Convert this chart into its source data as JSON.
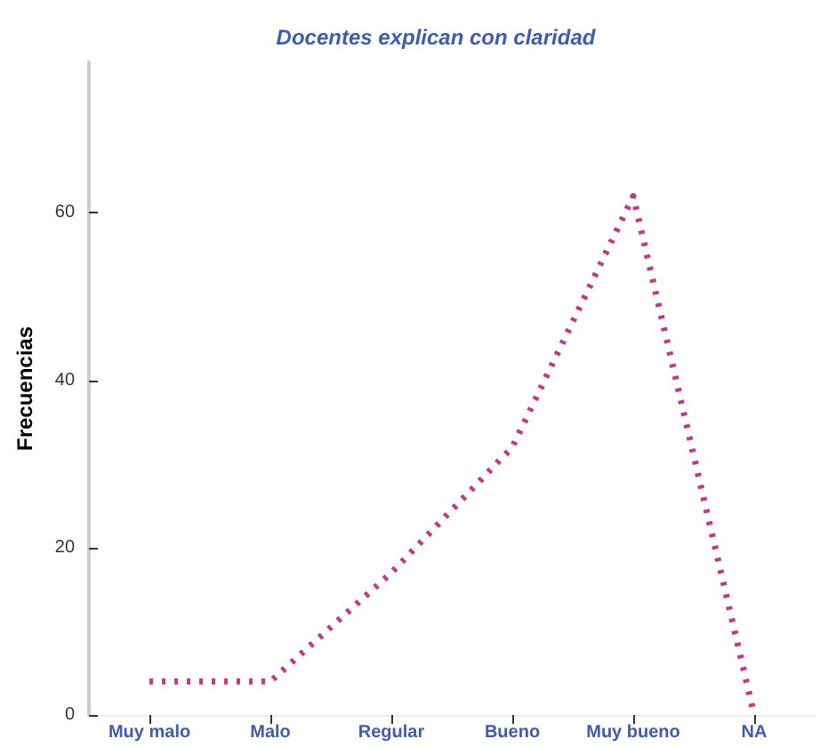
{
  "chart_data": {
    "type": "line",
    "title": "Docentes explican con claridad",
    "ylabel": "Frecuencias",
    "categories": [
      "Muy malo",
      "Malo",
      "Regular",
      "Bueno",
      "Muy bueno",
      "NA"
    ],
    "series": [
      {
        "color": "#c0398a",
        "values": [
          4,
          4,
          17,
          32,
          62,
          0
        ]
      }
    ],
    "ylim": [
      0,
      78
    ],
    "yticks": [
      0,
      20,
      40,
      60
    ],
    "grid": false,
    "line_style": "dotted"
  }
}
